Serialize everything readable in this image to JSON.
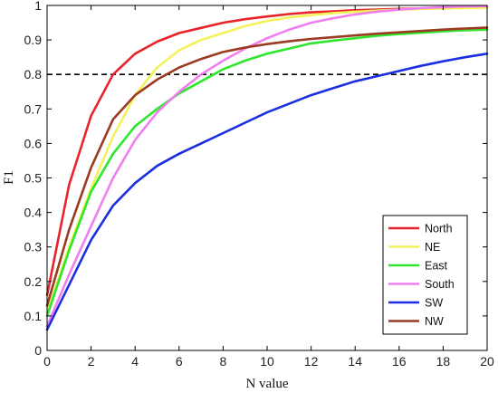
{
  "chart_data": {
    "type": "line",
    "xlabel": "N value",
    "ylabel": "F1",
    "xlim": [
      0,
      20
    ],
    "ylim": [
      0,
      1
    ],
    "xticks": [
      0,
      2,
      4,
      6,
      8,
      10,
      12,
      14,
      16,
      18,
      20
    ],
    "yticks": [
      0,
      0.1,
      0.2,
      0.3,
      0.4,
      0.5,
      0.6,
      0.7,
      0.8,
      0.9,
      1
    ],
    "tick_labels_x": [
      "0",
      "2",
      "4",
      "6",
      "8",
      "10",
      "12",
      "14",
      "16",
      "18",
      "20"
    ],
    "tick_labels_y": [
      "0",
      "0.1",
      "0.2",
      "0.3",
      "0.4",
      "0.5",
      "0.6",
      "0.7",
      "0.8",
      "0.9",
      "1"
    ],
    "grid": false,
    "legend_position": "bottom-right",
    "reference_line": {
      "y": 0.8,
      "style": "dashed",
      "color": "#000000"
    },
    "x": [
      0,
      1,
      2,
      3,
      4,
      5,
      6,
      7,
      8,
      9,
      10,
      11,
      12,
      13,
      14,
      15,
      16,
      17,
      18,
      19,
      20
    ],
    "series": [
      {
        "name": "North",
        "color": "#e8232a",
        "values": [
          0.16,
          0.48,
          0.68,
          0.8,
          0.86,
          0.895,
          0.92,
          0.935,
          0.95,
          0.96,
          0.968,
          0.975,
          0.98,
          0.983,
          0.986,
          0.988,
          0.99,
          0.991,
          0.992,
          0.993,
          0.994
        ]
      },
      {
        "name": "NE",
        "color": "#f2f25a",
        "values": [
          0.11,
          0.3,
          0.47,
          0.62,
          0.74,
          0.82,
          0.87,
          0.9,
          0.92,
          0.94,
          0.955,
          0.965,
          0.972,
          0.978,
          0.982,
          0.985,
          0.988,
          0.99,
          0.991,
          0.992,
          0.993
        ]
      },
      {
        "name": "East",
        "color": "#2ee62e",
        "values": [
          0.1,
          0.29,
          0.46,
          0.57,
          0.65,
          0.7,
          0.745,
          0.78,
          0.815,
          0.84,
          0.86,
          0.875,
          0.89,
          0.898,
          0.905,
          0.912,
          0.917,
          0.921,
          0.925,
          0.928,
          0.93
        ]
      },
      {
        "name": "South",
        "color": "#f07ef0",
        "values": [
          0.07,
          0.22,
          0.36,
          0.5,
          0.61,
          0.69,
          0.75,
          0.8,
          0.84,
          0.875,
          0.905,
          0.93,
          0.95,
          0.963,
          0.974,
          0.982,
          0.988,
          0.992,
          0.995,
          0.997,
          0.998
        ]
      },
      {
        "name": "SW",
        "color": "#1a2fe0",
        "values": [
          0.06,
          0.19,
          0.32,
          0.42,
          0.485,
          0.535,
          0.57,
          0.6,
          0.63,
          0.66,
          0.69,
          0.715,
          0.74,
          0.76,
          0.78,
          0.795,
          0.81,
          0.825,
          0.838,
          0.85,
          0.86
        ]
      },
      {
        "name": "NW",
        "color": "#9b3a22",
        "values": [
          0.13,
          0.35,
          0.53,
          0.67,
          0.74,
          0.785,
          0.82,
          0.845,
          0.865,
          0.878,
          0.888,
          0.896,
          0.903,
          0.908,
          0.913,
          0.918,
          0.922,
          0.926,
          0.93,
          0.933,
          0.936
        ]
      }
    ]
  }
}
